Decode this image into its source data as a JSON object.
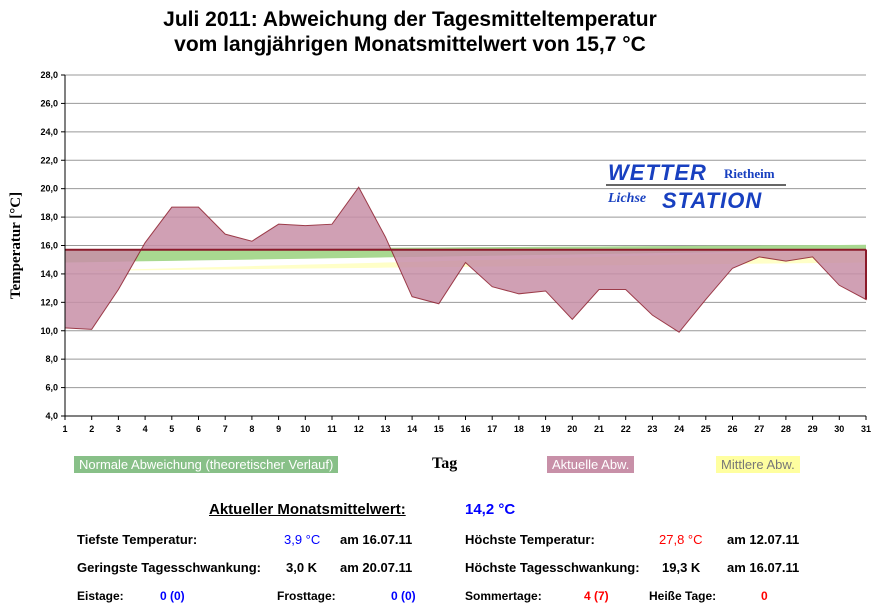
{
  "chart_data": {
    "type": "area",
    "title": "Juli 2011: Abweichung der Tagesmitteltemperatur",
    "subtitle": "vom langjährigen Monatsmittelwert von 15,7 °C",
    "xlabel": "Tag",
    "ylabel": "Temperatur [°C]",
    "ylim": [
      4,
      28
    ],
    "ytick_step": 2,
    "x": [
      1,
      2,
      3,
      4,
      5,
      6,
      7,
      8,
      9,
      10,
      11,
      12,
      13,
      14,
      15,
      16,
      17,
      18,
      19,
      20,
      21,
      22,
      23,
      24,
      25,
      26,
      27,
      28,
      29,
      30,
      31
    ],
    "reference": 15.7,
    "series": [
      {
        "name": "Aktuelle Abw.",
        "color": "#c890a8",
        "values": [
          10.2,
          10.1,
          12.9,
          16.2,
          18.7,
          18.7,
          16.8,
          16.3,
          17.5,
          17.4,
          17.5,
          20.1,
          16.6,
          12.4,
          11.9,
          14.8,
          13.1,
          12.6,
          12.8,
          10.8,
          12.9,
          12.9,
          11.1,
          9.9,
          12.2,
          14.4,
          15.2,
          14.9,
          15.2,
          13.2,
          12.2
        ]
      },
      {
        "name": "Normale Abweichung (theoretischer Verlauf)",
        "color": "#a8d890",
        "range": [
          [
            14.8,
            15.7
          ],
          [
            15.7,
            16.05
          ]
        ]
      },
      {
        "name": "Mittlere Abw.",
        "color": "#ffffc8",
        "range": [
          [
            14.2,
            14.8
          ],
          [
            14.2,
            15.7
          ]
        ]
      }
    ],
    "legend_placement": "bottom"
  },
  "logo": {
    "line1": "WETTER",
    "line2": "Rietheim",
    "line3": "Lichse",
    "line4": "STATION"
  },
  "stats": {
    "mean_label": "Aktueller Monatsmittelwert:",
    "mean_value": "14,2 °C",
    "min_label": "Tiefste Temperatur:",
    "min_value": "3,9 °C",
    "min_date": "am 16.07.11",
    "max_label": "Höchste Temperatur:",
    "max_value": "27,8 °C",
    "max_date": "am 12.07.11",
    "minrange_label": "Geringste Tagesschwankung:",
    "minrange_value": "3,0 K",
    "minrange_date": "am 20.07.11",
    "maxrange_label": "Höchste Tagesschwankung:",
    "maxrange_value": "19,3 K",
    "maxrange_date": "am 16.07.11",
    "eis_label": "Eistage:",
    "eis_value": "0 (0)",
    "frost_label": "Frosttage:",
    "frost_value": "0 (0)",
    "sommer_label": "Sommertage:",
    "sommer_value": "4 (7)",
    "heiss_label": "Heiße Tage:",
    "heiss_value": "0"
  }
}
